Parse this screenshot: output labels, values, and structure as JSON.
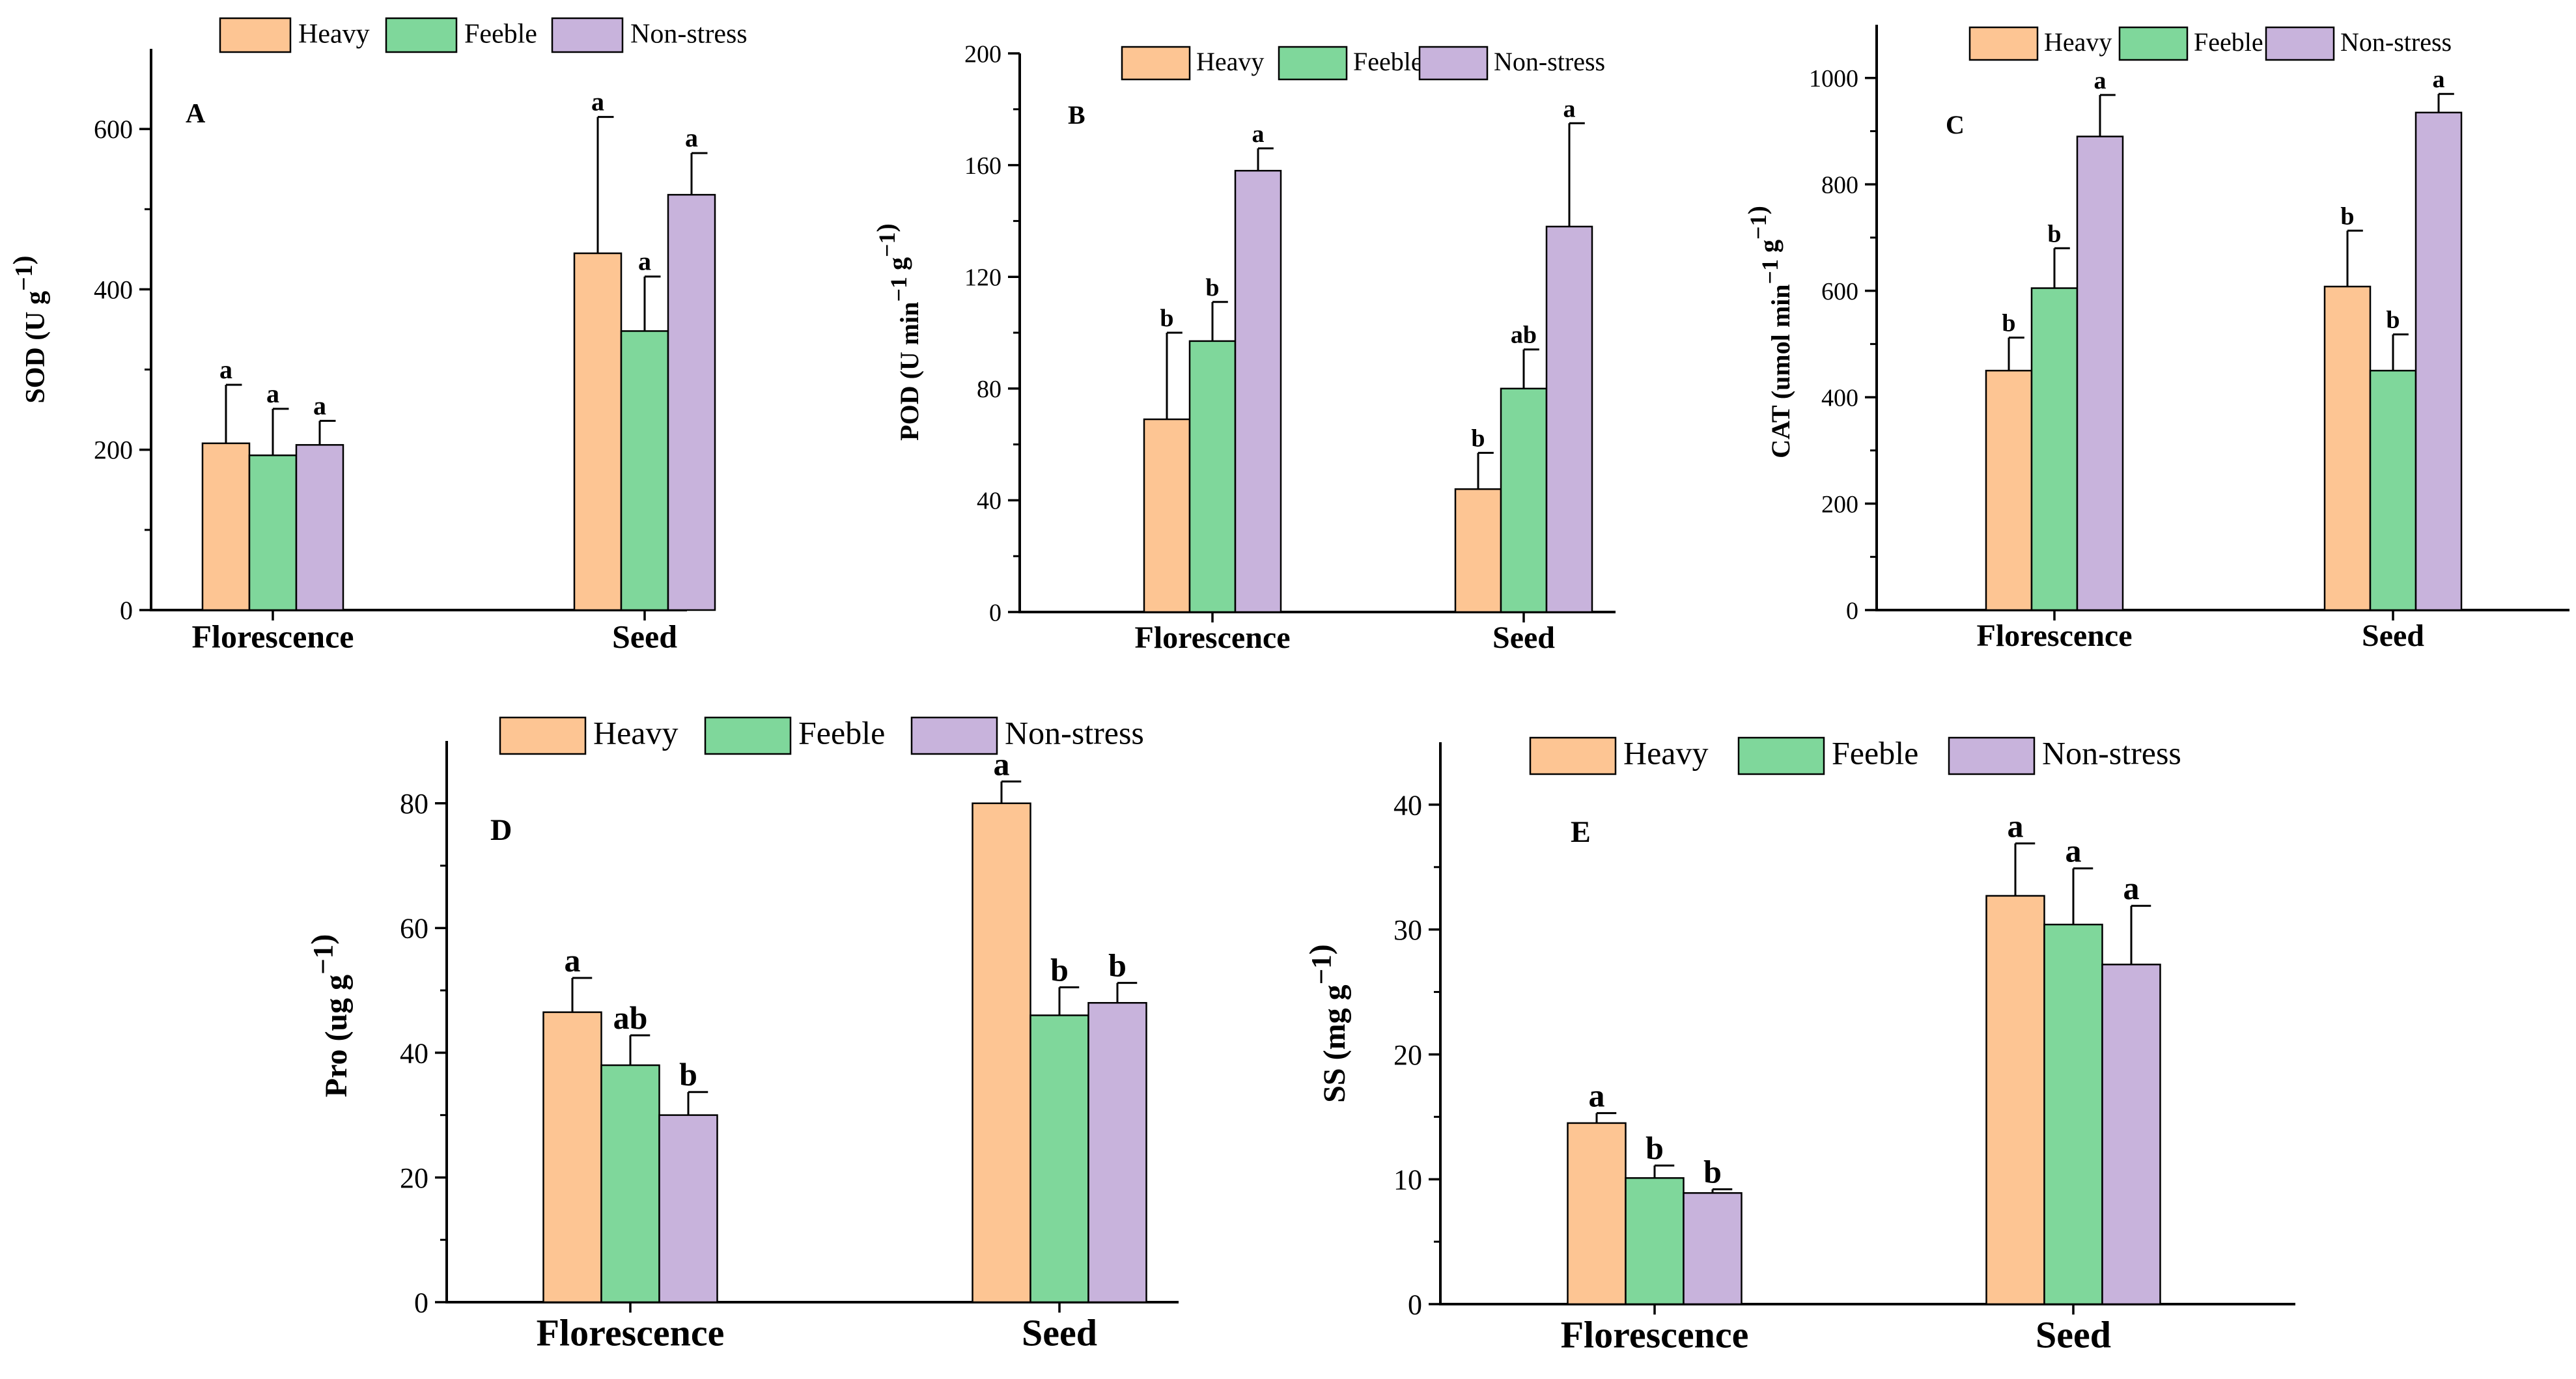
{
  "chart_data": [
    {
      "panel": "A",
      "type": "bar",
      "ylabel": "SOD (U g⁻¹)",
      "ylim": [
        0,
        700
      ],
      "yticks": [
        0,
        200,
        400,
        600
      ],
      "categories": [
        "Florescence",
        "Seed"
      ],
      "series": [
        {
          "name": "Heavy",
          "color": "#FDC593",
          "values": [
            208,
            445
          ],
          "errors": [
            73,
            170
          ],
          "labels": [
            "a",
            "a"
          ]
        },
        {
          "name": "Feeble",
          "color": "#7FD79B",
          "values": [
            193,
            348
          ],
          "errors": [
            58,
            68
          ],
          "labels": [
            "a",
            "a"
          ]
        },
        {
          "name": "Non-stress",
          "color": "#C8B3DC",
          "values": [
            206,
            518
          ],
          "errors": [
            30,
            52
          ],
          "labels": [
            "a",
            "a"
          ]
        }
      ]
    },
    {
      "panel": "B",
      "type": "bar",
      "ylabel": "POD (U min⁻¹ g⁻¹)",
      "ylim": [
        0,
        200
      ],
      "yticks": [
        0,
        40,
        80,
        120,
        160,
        200
      ],
      "categories": [
        "Florescence",
        "Seed"
      ],
      "series": [
        {
          "name": "Heavy",
          "color": "#FDC593",
          "values": [
            69,
            44
          ],
          "errors": [
            31,
            13
          ],
          "labels": [
            "b",
            "b"
          ]
        },
        {
          "name": "Feeble",
          "color": "#7FD79B",
          "values": [
            97,
            80
          ],
          "errors": [
            14,
            14
          ],
          "labels": [
            "b",
            "ab"
          ]
        },
        {
          "name": "Non-stress",
          "color": "#C8B3DC",
          "values": [
            158,
            138
          ],
          "errors": [
            8,
            37
          ],
          "labels": [
            "a",
            "a"
          ]
        }
      ]
    },
    {
      "panel": "C",
      "type": "bar",
      "ylabel": "CAT (umol min⁻¹ g⁻¹)",
      "ylim": [
        0,
        1100
      ],
      "yticks": [
        0,
        200,
        400,
        600,
        800,
        1000
      ],
      "categories": [
        "Florescence",
        "Seed"
      ],
      "series": [
        {
          "name": "Heavy",
          "color": "#FDC593",
          "values": [
            450,
            608
          ],
          "errors": [
            62,
            105
          ],
          "labels": [
            "b",
            "b"
          ]
        },
        {
          "name": "Feeble",
          "color": "#7FD79B",
          "values": [
            605,
            450
          ],
          "errors": [
            75,
            68
          ],
          "labels": [
            "b",
            "b"
          ]
        },
        {
          "name": "Non-stress",
          "color": "#C8B3DC",
          "values": [
            890,
            935
          ],
          "errors": [
            78,
            35
          ],
          "labels": [
            "a",
            "a"
          ]
        }
      ]
    },
    {
      "panel": "D",
      "type": "bar",
      "ylabel": "Pro (ug g⁻¹)",
      "ylim": [
        0,
        90
      ],
      "yticks": [
        0,
        20,
        40,
        60,
        80
      ],
      "categories": [
        "Florescence",
        "Seed"
      ],
      "series": [
        {
          "name": "Heavy",
          "color": "#FDC593",
          "values": [
            46.5,
            80
          ],
          "errors": [
            5.5,
            3.5
          ],
          "labels": [
            "a",
            "a"
          ]
        },
        {
          "name": "Feeble",
          "color": "#7FD79B",
          "values": [
            38,
            46
          ],
          "errors": [
            4.8,
            4.5
          ],
          "labels": [
            "ab",
            "b"
          ]
        },
        {
          "name": "Non-stress",
          "color": "#C8B3DC",
          "values": [
            30,
            48
          ],
          "errors": [
            3.7,
            3.2
          ],
          "labels": [
            "b",
            "b"
          ]
        }
      ]
    },
    {
      "panel": "E",
      "type": "bar",
      "ylabel": "SS (mg g⁻¹)",
      "ylim": [
        0,
        45
      ],
      "yticks": [
        0,
        10,
        20,
        30,
        40
      ],
      "categories": [
        "Florescence",
        "Seed"
      ],
      "series": [
        {
          "name": "Heavy",
          "color": "#FDC593",
          "values": [
            14.5,
            32.7
          ],
          "errors": [
            0.8,
            4.2
          ],
          "labels": [
            "a",
            "a"
          ]
        },
        {
          "name": "Feeble",
          "color": "#7FD79B",
          "values": [
            10.1,
            30.4
          ],
          "errors": [
            1.0,
            4.5
          ],
          "labels": [
            "b",
            "a"
          ]
        },
        {
          "name": "Non-stress",
          "color": "#C8B3DC",
          "values": [
            8.9,
            27.2
          ],
          "errors": [
            0.3,
            4.7
          ],
          "labels": [
            "b",
            "a"
          ]
        }
      ]
    }
  ]
}
